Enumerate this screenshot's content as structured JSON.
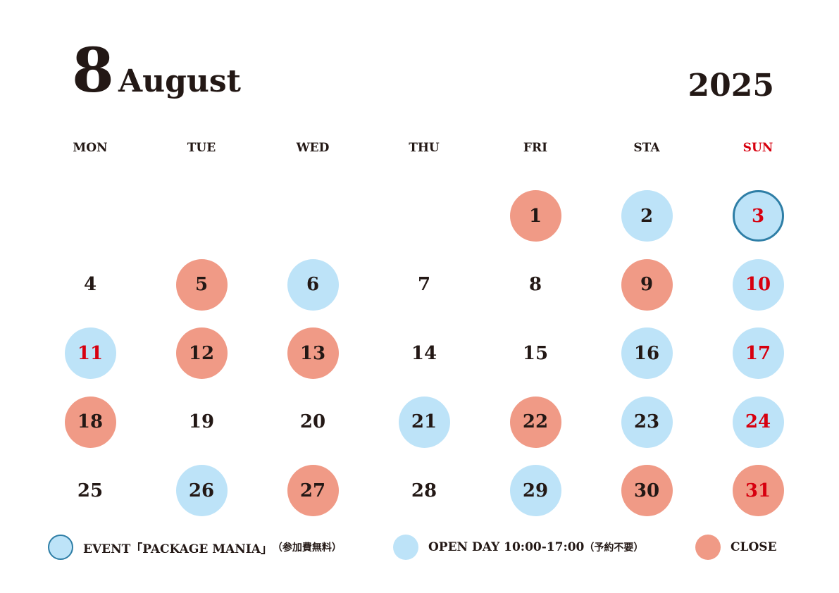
{
  "header": {
    "month_number": "8",
    "month_name": "August",
    "year": "2025"
  },
  "weekdays": [
    "MON",
    "TUE",
    "WED",
    "THU",
    "FRI",
    "STA",
    "SUN"
  ],
  "colors": {
    "open": "#bde3f8",
    "close": "#f09a86",
    "event_border": "#2e7ea6",
    "sunday_text": "#d7000f"
  },
  "leading_blank_days": 4,
  "days": [
    {
      "day": "1",
      "status": "close"
    },
    {
      "day": "2",
      "status": "open"
    },
    {
      "day": "3",
      "status": "event"
    },
    {
      "day": "4",
      "status": "none"
    },
    {
      "day": "5",
      "status": "close"
    },
    {
      "day": "6",
      "status": "open"
    },
    {
      "day": "7",
      "status": "none"
    },
    {
      "day": "8",
      "status": "none"
    },
    {
      "day": "9",
      "status": "close"
    },
    {
      "day": "10",
      "status": "open"
    },
    {
      "day": "11",
      "status": "open"
    },
    {
      "day": "12",
      "status": "close"
    },
    {
      "day": "13",
      "status": "close"
    },
    {
      "day": "14",
      "status": "none"
    },
    {
      "day": "15",
      "status": "none"
    },
    {
      "day": "16",
      "status": "open"
    },
    {
      "day": "17",
      "status": "open"
    },
    {
      "day": "18",
      "status": "close"
    },
    {
      "day": "19",
      "status": "none"
    },
    {
      "day": "20",
      "status": "none"
    },
    {
      "day": "21",
      "status": "open"
    },
    {
      "day": "22",
      "status": "close"
    },
    {
      "day": "23",
      "status": "open"
    },
    {
      "day": "24",
      "status": "open"
    },
    {
      "day": "25",
      "status": "none"
    },
    {
      "day": "26",
      "status": "open"
    },
    {
      "day": "27",
      "status": "close"
    },
    {
      "day": "28",
      "status": "none"
    },
    {
      "day": "29",
      "status": "open"
    },
    {
      "day": "30",
      "status": "close"
    },
    {
      "day": "31",
      "status": "close"
    }
  ],
  "red_text_days": [
    "3",
    "10",
    "11",
    "17",
    "24",
    "31"
  ],
  "legend": {
    "event": {
      "label": "EVENT「PACKAGE MANIA」",
      "note": "（参加費無料）"
    },
    "open": {
      "label": "OPEN DAY 10:00-17:00",
      "note": "（予約不要）"
    },
    "close": {
      "label": "CLOSE"
    }
  }
}
